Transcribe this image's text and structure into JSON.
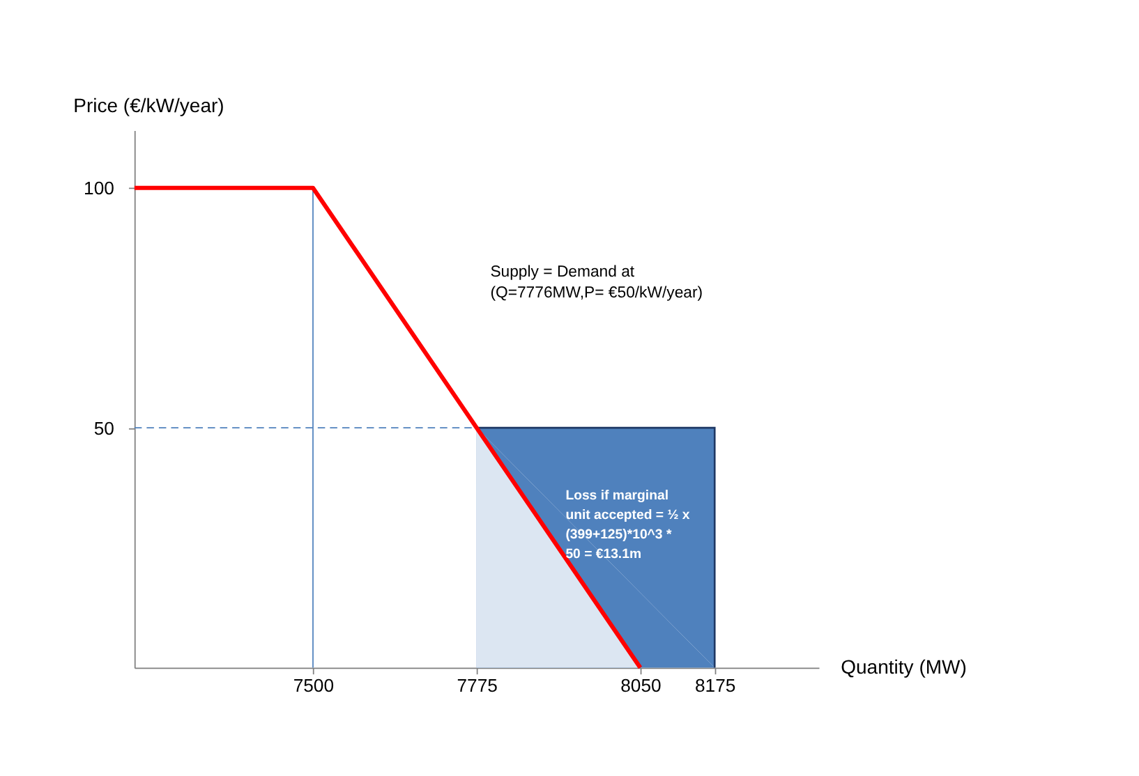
{
  "chart_data": {
    "type": "line",
    "xlabel": "Quantity (MW)",
    "ylabel": "Price (€/kW/year)",
    "xlim": [
      7200,
      8350
    ],
    "xticks": [
      7500,
      7775,
      8050,
      8175
    ],
    "ylim": [
      0,
      112
    ],
    "yticks": [
      50,
      100
    ],
    "grid": false,
    "marker": "none",
    "series": [
      {
        "type": "area",
        "color": "#4f81bd",
        "x": [
          7775,
          8175
        ],
        "values": [
          50,
          50
        ]
      },
      {
        "type": "area",
        "color": "#dce6f2",
        "x": [
          7775,
          8050
        ],
        "values": [
          50,
          0
        ]
      },
      {
        "color": "#4f81bd",
        "x": [
          7500,
          7500
        ],
        "values": [
          0,
          100
        ]
      },
      {
        "color": "#ff0000",
        "x": [
          7200,
          7500,
          8050
        ],
        "values": [
          100,
          100,
          0
        ]
      }
    ],
    "ref_lines": [
      {
        "axis": "y",
        "value": 50,
        "label": null,
        "color": "#4f81bd",
        "line_style": "dashed"
      }
    ],
    "annotations": [
      "Supply = Demand at\n(Q=7776MW,P= €50/kW/year)",
      "Loss if marginal\nunit accepted = ½ x\n(399+125)*10^3  *\n50 = €13.1m"
    ]
  }
}
